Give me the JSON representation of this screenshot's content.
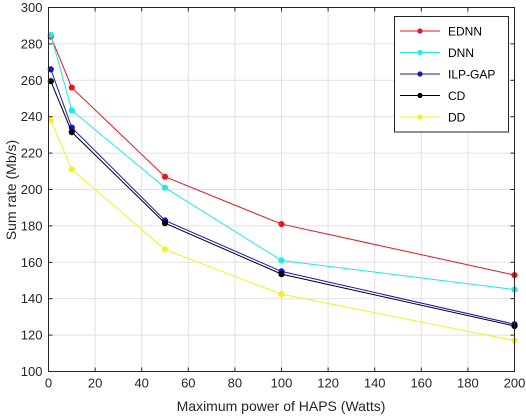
{
  "chart_data": {
    "type": "line",
    "title": "",
    "xlabel": "Maximum power of HAPS (Watts)",
    "ylabel": "Sum rate (Mb/s)",
    "xlim": [
      0,
      200
    ],
    "ylim": [
      100,
      300
    ],
    "xticks": [
      0,
      20,
      40,
      60,
      80,
      100,
      120,
      140,
      160,
      180,
      200
    ],
    "yticks": [
      100,
      120,
      140,
      160,
      180,
      200,
      220,
      240,
      260,
      280,
      300
    ],
    "grid": true,
    "legend_position": "top-right",
    "x": [
      1,
      10,
      50,
      100,
      200
    ],
    "series": [
      {
        "name": "EDNN",
        "color": "#e8161e",
        "values": [
          284,
          256,
          207,
          181,
          153
        ]
      },
      {
        "name": "DNN",
        "color": "#1ee8e8",
        "values": [
          285,
          243.5,
          201,
          161,
          145
        ]
      },
      {
        "name": "ILP-GAP",
        "color": "#1515c8",
        "values": [
          266,
          234,
          183,
          155,
          126
        ]
      },
      {
        "name": "CD",
        "color": "#000000",
        "values": [
          259.5,
          231.5,
          181.5,
          153.5,
          125
        ]
      },
      {
        "name": "DD",
        "color": "#f5f01e",
        "values": [
          238,
          211,
          167,
          142.5,
          117
        ]
      }
    ]
  }
}
